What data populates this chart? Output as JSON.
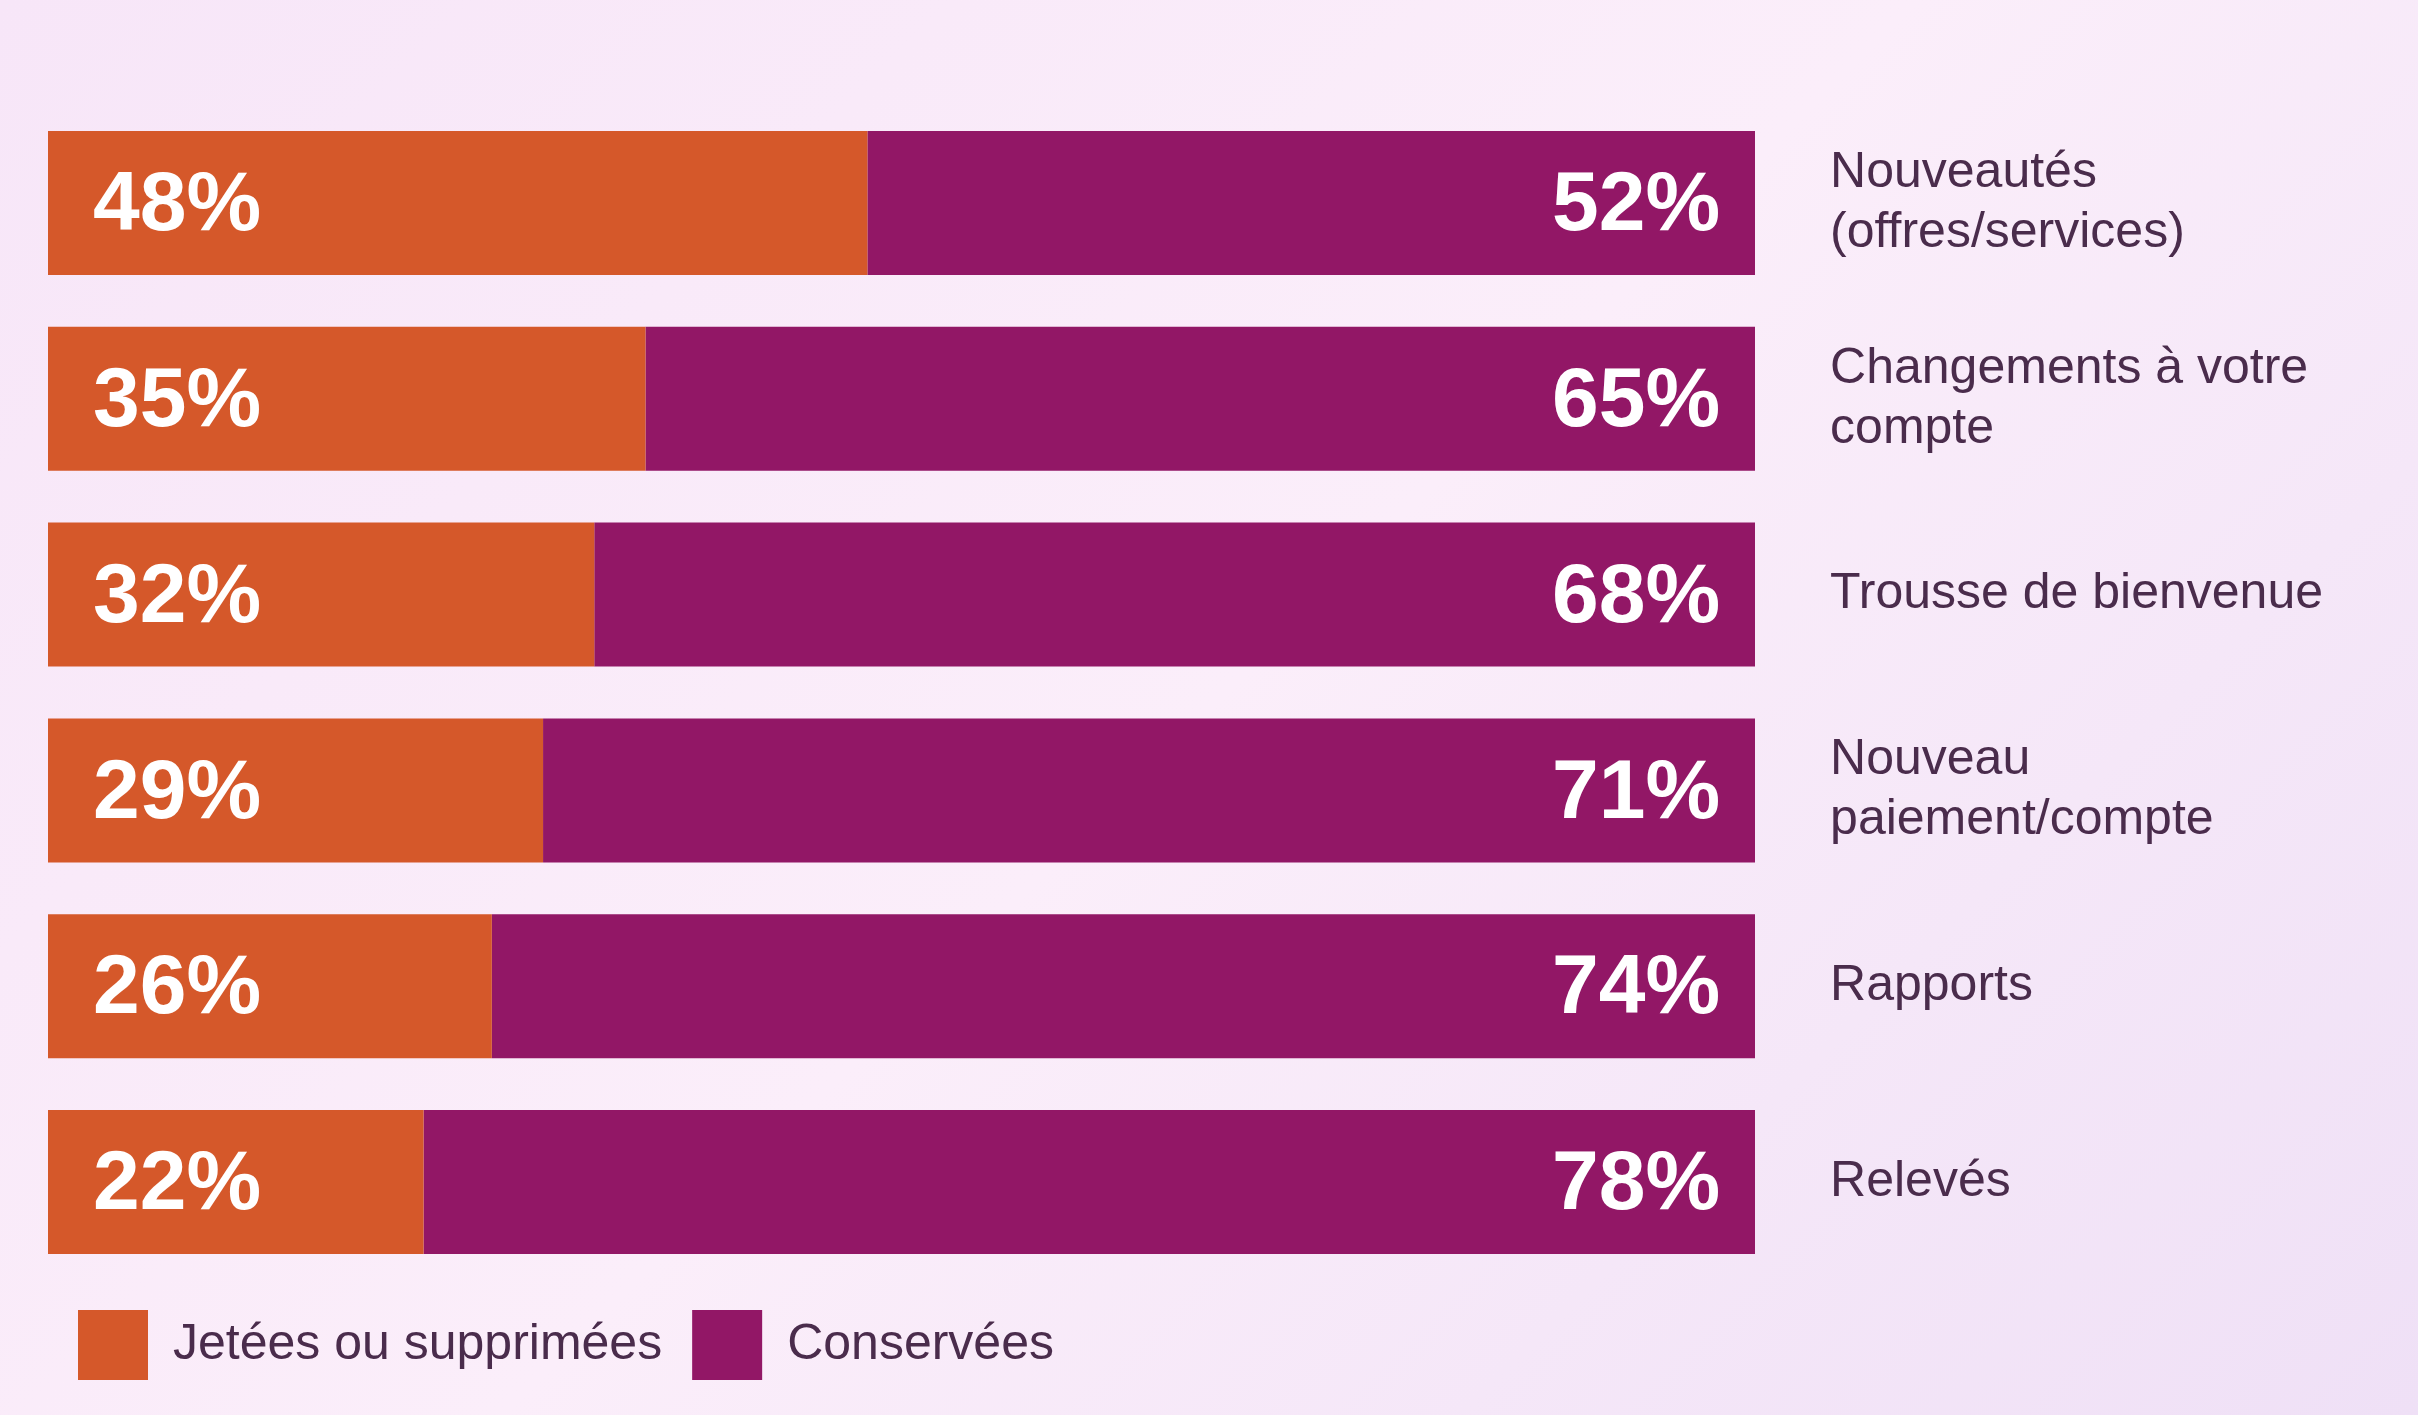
{
  "chart_data": {
    "type": "bar",
    "orientation": "horizontal",
    "stacked": true,
    "categories": [
      "Nouveautés (offres/services)",
      "Changements à votre compte",
      "Trousse de bienvenue",
      "Nouveau paiement/compte",
      "Rapports",
      "Relevés"
    ],
    "series": [
      {
        "name": "Jetées ou supprimées",
        "color": "#d5582a",
        "values": [
          48,
          35,
          32,
          29,
          26,
          22
        ],
        "value_labels": [
          "48%",
          "35%",
          "32%",
          "29%",
          "26%",
          "22%"
        ]
      },
      {
        "name": "Conservées",
        "color": "#921766",
        "values": [
          52,
          65,
          68,
          71,
          74,
          78
        ],
        "value_labels": [
          "52%",
          "65%",
          "68%",
          "71%",
          "74%",
          "78%"
        ]
      }
    ],
    "xlim": [
      0,
      100
    ],
    "tick_labels": "y",
    "legend": "bottom left"
  }
}
